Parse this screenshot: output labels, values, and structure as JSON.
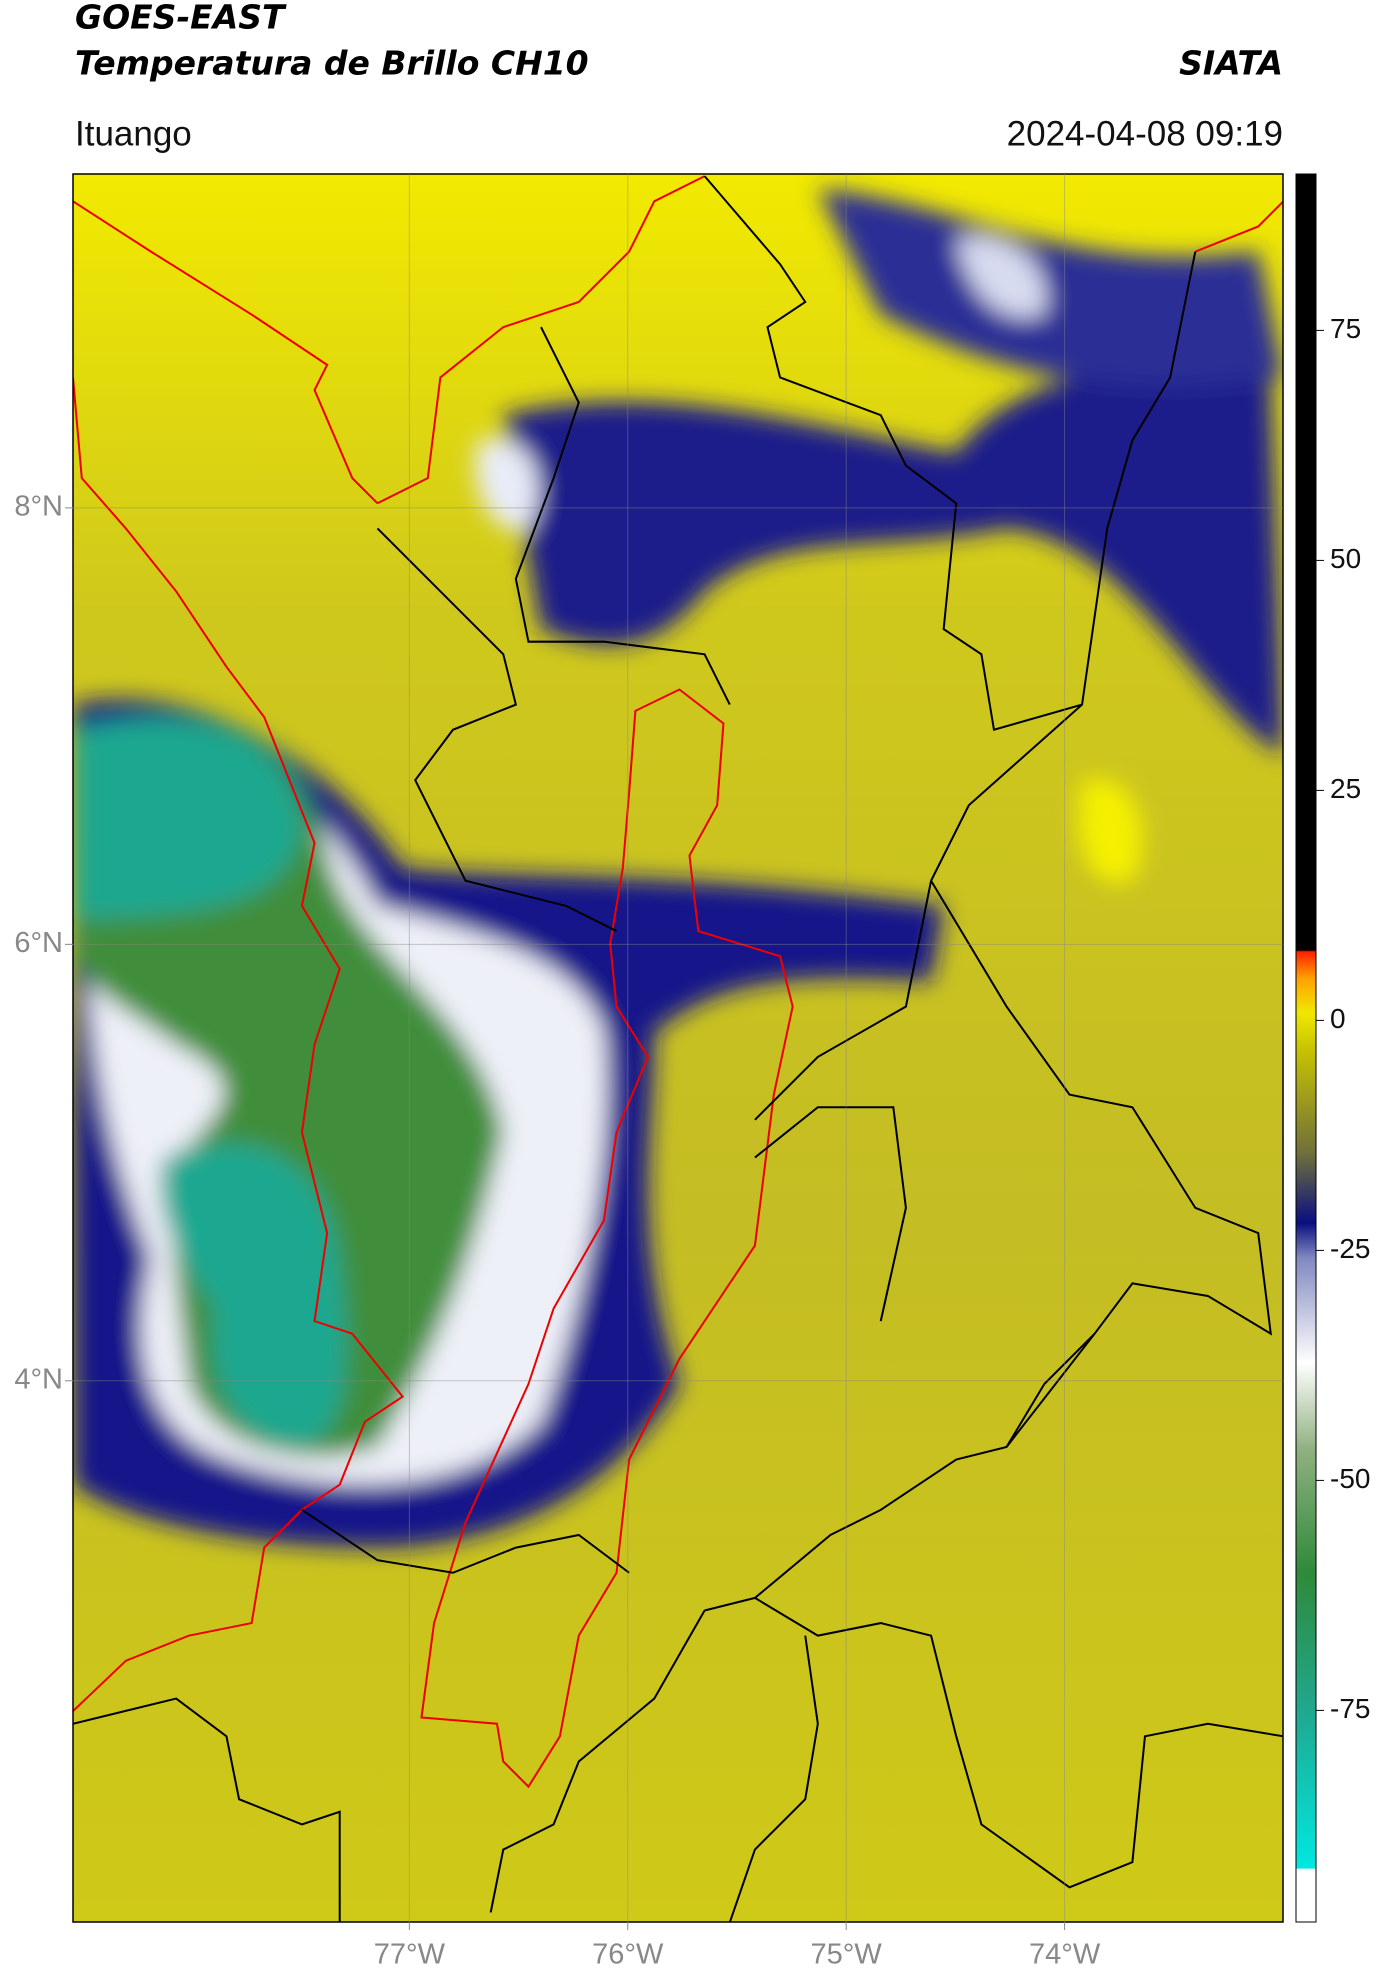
{
  "header": {
    "title": "GOES-EAST",
    "subtitle": "Temperatura de Brillo CH10",
    "source": "SIATA",
    "location": "Ituango",
    "timestamp": "2024-04-08 09:19"
  },
  "map": {
    "xlim": [
      -78.54,
      -73.0
    ],
    "ylim": [
      1.52,
      9.53
    ],
    "xticks": [
      {
        "value": -77,
        "label": "77°W"
      },
      {
        "value": -76,
        "label": "76°W"
      },
      {
        "value": -75,
        "label": "75°W"
      },
      {
        "value": -74,
        "label": "74°W"
      }
    ],
    "yticks": [
      {
        "value": 8,
        "label": "8°N"
      },
      {
        "value": 6,
        "label": "6°N"
      },
      {
        "value": 4,
        "label": "4°N"
      }
    ]
  },
  "colorbar": {
    "lim": [
      -98,
      92
    ],
    "ticks": [
      75,
      50,
      25,
      0,
      -25,
      -50,
      -75
    ]
  }
}
